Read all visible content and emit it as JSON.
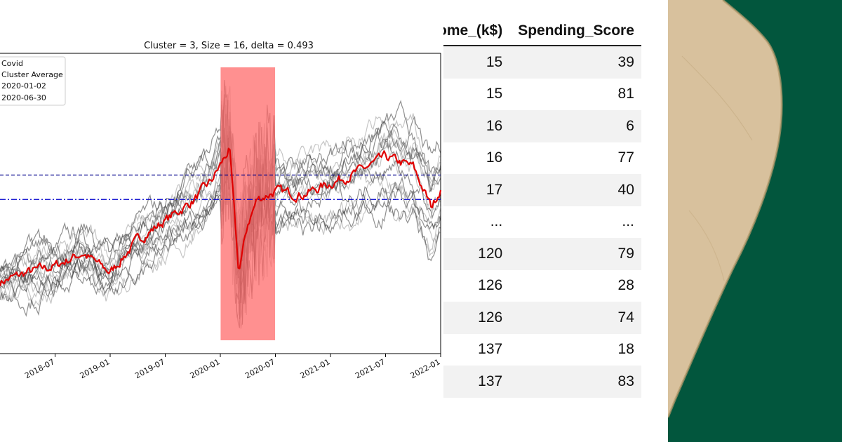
{
  "chart_data": {
    "type": "line",
    "title": "Cluster = 3, Size = 16, delta = 0.493",
    "legend": {
      "placement": "top-left",
      "entries": [
        "Covid",
        "Cluster Average",
        "2020-01-02",
        "2020-06-30"
      ]
    },
    "x_ticks": [
      "2018-07",
      "2019-01",
      "2019-07",
      "2020-01",
      "2020-07",
      "2021-01",
      "2021-07",
      "2022-01"
    ],
    "x_range": [
      "2018-01",
      "2022-01"
    ],
    "y_range": [
      -1.1,
      0.75
    ],
    "covid_period": {
      "start": "2020-01-02",
      "end": "2020-06-30"
    },
    "reference_lines": [
      {
        "name": "2020-01-02",
        "value": 0.0,
        "style": "dashed",
        "color": "#00008b"
      },
      {
        "name": "2020-06-30",
        "value": -0.15,
        "style": "dashdot",
        "color": "#0000cd"
      }
    ],
    "series": [
      {
        "name": "Cluster Average",
        "color": "#e00000",
        "x": [
          "2018-01",
          "2018-04",
          "2018-07",
          "2018-10",
          "2019-01",
          "2019-04",
          "2019-07",
          "2019-10",
          "2019-12",
          "2020-02",
          "2020-03",
          "2020-04",
          "2020-05",
          "2020-07",
          "2020-10",
          "2021-01",
          "2021-04",
          "2021-07",
          "2021-10",
          "2021-12",
          "2022-01"
        ],
        "values": [
          -0.66,
          -0.6,
          -0.56,
          -0.48,
          -0.6,
          -0.4,
          -0.28,
          -0.16,
          -0.04,
          0.16,
          -0.6,
          -0.3,
          -0.15,
          -0.1,
          -0.12,
          -0.05,
          0.02,
          0.11,
          0.05,
          -0.2,
          -0.08
        ]
      }
    ],
    "individual_series_count": 16,
    "individual_series_color": "#808080"
  },
  "table": {
    "columns": [
      "ome_(k$)",
      "Spending_Score"
    ],
    "rows": [
      [
        "15",
        "39"
      ],
      [
        "15",
        "81"
      ],
      [
        "16",
        "6"
      ],
      [
        "16",
        "77"
      ],
      [
        "17",
        "40"
      ],
      [
        "...",
        "..."
      ],
      [
        "120",
        "79"
      ],
      [
        "126",
        "28"
      ],
      [
        "126",
        "74"
      ],
      [
        "137",
        "18"
      ],
      [
        "137",
        "83"
      ]
    ]
  },
  "colors": {
    "covid_band": "#ff6b6b",
    "background_green": "#02563d",
    "parchment": "#d8c19d"
  }
}
